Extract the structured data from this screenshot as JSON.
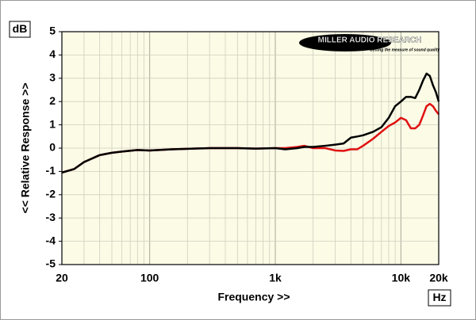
{
  "chart_data": {
    "type": "line",
    "y_unit": "dB",
    "x_unit": "Hz",
    "ylabel": "<< Relative Response >>",
    "xlabel": "Frequency >>",
    "logo": {
      "name": "MILLER AUDIO RESEARCH",
      "tagline": "Getting the measure of sound quality"
    },
    "xscale": "log",
    "grid": true,
    "xlim": [
      20,
      20000
    ],
    "ylim": [
      -5,
      5
    ],
    "xticks": [
      20,
      100,
      {
        "value": 1000,
        "label": "1k"
      },
      {
        "value": 10000,
        "label": "10k"
      },
      {
        "value": 20000,
        "label": "20k"
      }
    ],
    "xgrid_minor": [
      30,
      40,
      50,
      60,
      70,
      80,
      90,
      200,
      300,
      400,
      500,
      600,
      700,
      800,
      900,
      2000,
      3000,
      4000,
      5000,
      6000,
      7000,
      8000,
      9000
    ],
    "yticks": [
      5,
      4,
      3,
      2,
      1,
      0,
      -1,
      -2,
      -3,
      -4,
      -5
    ],
    "x": [
      20,
      25,
      30,
      40,
      50,
      60,
      80,
      100,
      150,
      200,
      300,
      500,
      700,
      1000,
      1200,
      1500,
      1700,
      2000,
      2500,
      3000,
      3500,
      4000,
      4500,
      5000,
      6000,
      7000,
      8000,
      9000,
      10000,
      11000,
      12000,
      13000,
      14000,
      15000,
      16000,
      17000,
      18000,
      19000,
      20000
    ],
    "series": [
      {
        "color": "#e01010",
        "values": [
          -1.05,
          -0.9,
          -0.6,
          -0.3,
          -0.2,
          -0.15,
          -0.08,
          -0.1,
          -0.05,
          -0.03,
          0,
          0,
          -0.02,
          0,
          0,
          0.05,
          0.1,
          0.0,
          0.0,
          -0.1,
          -0.12,
          -0.05,
          -0.05,
          0.1,
          0.4,
          0.7,
          0.95,
          1.1,
          1.3,
          1.2,
          0.85,
          0.85,
          1.0,
          1.4,
          1.8,
          1.9,
          1.8,
          1.6,
          1.45
        ]
      },
      {
        "color": "#000000",
        "values": [
          -1.05,
          -0.9,
          -0.6,
          -0.3,
          -0.2,
          -0.15,
          -0.08,
          -0.1,
          -0.05,
          -0.03,
          0,
          0,
          -0.02,
          0,
          -0.05,
          0,
          0.05,
          0.05,
          0.1,
          0.15,
          0.2,
          0.45,
          0.5,
          0.55,
          0.7,
          0.9,
          1.3,
          1.8,
          2.0,
          2.2,
          2.2,
          2.15,
          2.5,
          2.9,
          3.2,
          3.1,
          2.7,
          2.4,
          2.0
        ]
      }
    ]
  }
}
